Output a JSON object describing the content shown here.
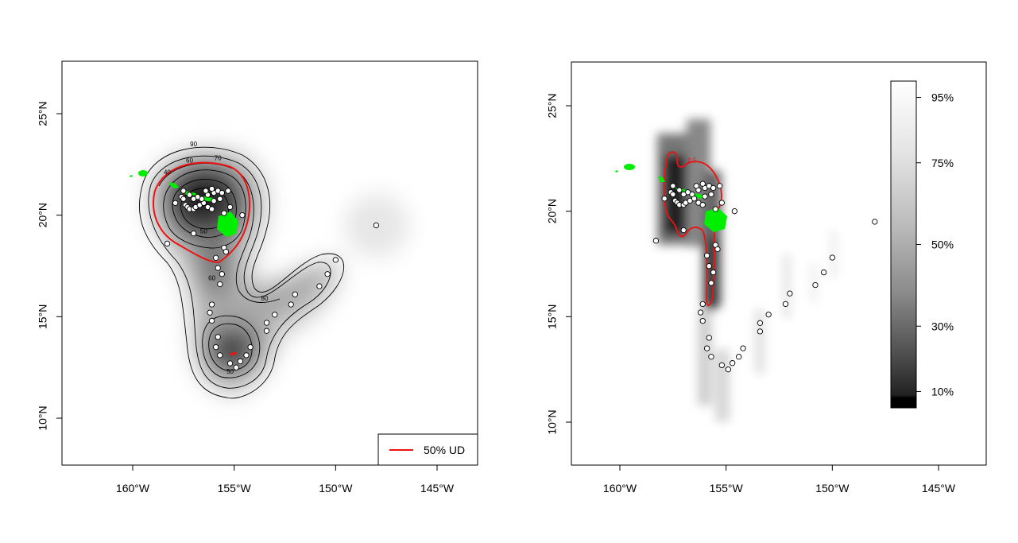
{
  "colors": {
    "land": "#00ee00",
    "ud_contour": "#ee1111",
    "contour": "#000000",
    "point_fill": "#ffffff",
    "point_stroke": "#000000"
  },
  "left_map": {
    "x_ticks": [
      {
        "lon": -160,
        "label": "160°W"
      },
      {
        "lon": -155,
        "label": "155°W"
      },
      {
        "lon": -150,
        "label": "150°W"
      },
      {
        "lon": -145,
        "label": "145°W"
      }
    ],
    "y_ticks": [
      {
        "lat": 10,
        "label": "10°N"
      },
      {
        "lat": 15,
        "label": "15°N"
      },
      {
        "lat": 20,
        "label": "20°N"
      },
      {
        "lat": 25,
        "label": "25°N"
      }
    ],
    "contour_labels": [
      {
        "text": "90",
        "lon": -157.0,
        "lat": 23.4
      },
      {
        "text": "70",
        "lon": -155.8,
        "lat": 22.7
      },
      {
        "text": "60",
        "lon": -157.2,
        "lat": 22.6
      },
      {
        "text": "40",
        "lon": -158.3,
        "lat": 22.0
      },
      {
        "text": "50",
        "lon": -156.5,
        "lat": 19.1
      },
      {
        "text": "60",
        "lon": -156.1,
        "lat": 16.8
      },
      {
        "text": "80",
        "lon": -153.5,
        "lat": 15.8
      },
      {
        "text": "50",
        "lon": -155.2,
        "lat": 12.2
      }
    ],
    "legend": {
      "label": "50% UD"
    }
  },
  "right_map": {
    "x_ticks": [
      {
        "lon": -160,
        "label": "160°W"
      },
      {
        "lon": -155,
        "label": "155°W"
      },
      {
        "lon": -150,
        "label": "150°W"
      },
      {
        "lon": -145,
        "label": "145°W"
      }
    ],
    "y_ticks": [
      {
        "lat": 10,
        "label": "10°N"
      },
      {
        "lat": 15,
        "label": "15°N"
      },
      {
        "lat": 20,
        "label": "20°N"
      },
      {
        "lat": 25,
        "label": "25°N"
      }
    ],
    "contour_labels": [
      {
        "text": "0.5",
        "lon": -156.6,
        "lat": 22.3
      }
    ],
    "colorbar": {
      "ticks": [
        {
          "frac": 0.05,
          "label": "10%"
        },
        {
          "frac": 0.25,
          "label": "30%"
        },
        {
          "frac": 0.5,
          "label": "50%"
        },
        {
          "frac": 0.75,
          "label": "75%"
        },
        {
          "frac": 0.95,
          "label": "95%"
        }
      ]
    }
  },
  "tracking_points": [
    [
      -157.9,
      20.6
    ],
    [
      -157.6,
      20.9
    ],
    [
      -157.5,
      20.8
    ],
    [
      -157.4,
      20.5
    ],
    [
      -157.3,
      20.4
    ],
    [
      -157.2,
      20.3
    ],
    [
      -157.0,
      20.3
    ],
    [
      -156.9,
      20.4
    ],
    [
      -156.7,
      20.5
    ],
    [
      -156.5,
      20.6
    ],
    [
      -156.3,
      20.4
    ],
    [
      -156.1,
      20.3
    ],
    [
      -156.6,
      20.8
    ],
    [
      -156.8,
      20.9
    ],
    [
      -157.0,
      20.8
    ],
    [
      -157.5,
      21.2
    ],
    [
      -157.2,
      21.0
    ],
    [
      -156.3,
      21.0
    ],
    [
      -156.0,
      21.1
    ],
    [
      -155.8,
      21.2
    ],
    [
      -155.6,
      21.1
    ],
    [
      -155.3,
      21.2
    ],
    [
      -155.7,
      20.8
    ],
    [
      -156.0,
      20.7
    ],
    [
      -156.1,
      21.3
    ],
    [
      -156.4,
      21.2
    ],
    [
      -155.2,
      20.4
    ],
    [
      -155.5,
      20.1
    ],
    [
      -154.6,
      20.0
    ],
    [
      -157.0,
      19.1
    ],
    [
      -158.3,
      18.6
    ],
    [
      -155.5,
      18.4
    ],
    [
      -155.4,
      18.2
    ],
    [
      -155.9,
      17.9
    ],
    [
      -155.8,
      17.4
    ],
    [
      -155.6,
      17.1
    ],
    [
      -155.7,
      16.6
    ],
    [
      -156.1,
      15.6
    ],
    [
      -156.2,
      15.2
    ],
    [
      -156.1,
      14.8
    ],
    [
      -155.8,
      14.0
    ],
    [
      -155.9,
      13.5
    ],
    [
      -155.7,
      13.1
    ],
    [
      -155.2,
      12.7
    ],
    [
      -154.9,
      12.5
    ],
    [
      -154.7,
      12.8
    ],
    [
      -154.4,
      13.1
    ],
    [
      -154.2,
      13.5
    ],
    [
      -153.4,
      14.3
    ],
    [
      -153.4,
      14.7
    ],
    [
      -153.0,
      15.1
    ],
    [
      -152.2,
      15.6
    ],
    [
      -152.0,
      16.1
    ],
    [
      -150.8,
      16.5
    ],
    [
      -150.4,
      17.1
    ],
    [
      -150.0,
      17.8
    ],
    [
      -148.0,
      19.5
    ]
  ]
}
